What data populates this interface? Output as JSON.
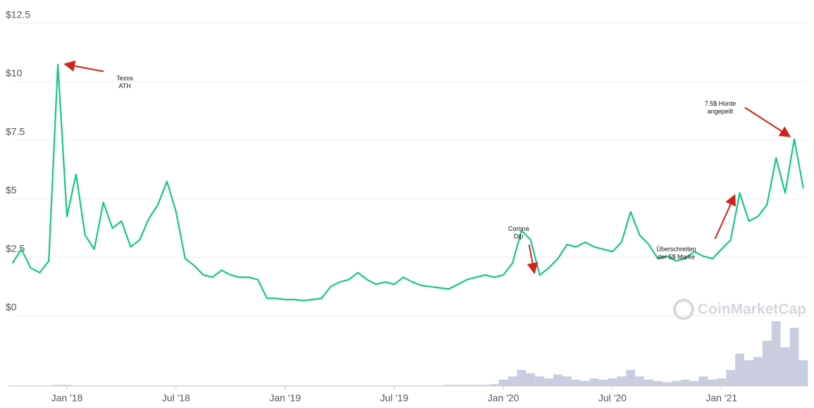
{
  "chart_data": {
    "type": "line",
    "watermark": "CoinMarketCap",
    "categories": [
      null,
      null,
      null,
      null,
      null,
      null,
      "Jan '18",
      null,
      null,
      null,
      null,
      null,
      null,
      null,
      null,
      null,
      null,
      null,
      "Jul '18",
      null,
      null,
      null,
      null,
      null,
      null,
      null,
      null,
      null,
      null,
      null,
      "Jan '19",
      null,
      null,
      null,
      null,
      null,
      null,
      null,
      null,
      null,
      null,
      null,
      "Jul '19",
      null,
      null,
      null,
      null,
      null,
      null,
      null,
      null,
      null,
      null,
      null,
      "Jan '20",
      null,
      null,
      null,
      null,
      null,
      null,
      null,
      null,
      null,
      null,
      null,
      "Jul '20",
      null,
      null,
      null,
      null,
      null,
      null,
      null,
      null,
      null,
      null,
      null,
      "Jan '21",
      null,
      null,
      null,
      null,
      null,
      null,
      null,
      null,
      null
    ],
    "series": [
      {
        "color": "#16c784",
        "values": [
          2.0,
          2.6,
          1.8,
          1.6,
          2.1,
          10.5,
          4.0,
          5.8,
          3.2,
          2.6,
          4.6,
          3.5,
          3.8,
          2.7,
          3.0,
          3.9,
          4.5,
          5.5,
          4.2,
          2.2,
          1.9,
          1.5,
          1.4,
          1.7,
          1.5,
          1.4,
          1.4,
          1.3,
          0.5,
          0.5,
          0.45,
          0.45,
          0.4,
          0.45,
          0.5,
          1.0,
          1.2,
          1.3,
          1.6,
          1.3,
          1.1,
          1.2,
          1.1,
          1.4,
          1.2,
          1.05,
          1.0,
          0.95,
          0.9,
          1.1,
          1.3,
          1.4,
          1.5,
          1.4,
          1.5,
          2.0,
          3.4,
          3.0,
          1.5,
          1.8,
          2.2,
          2.8,
          2.7,
          2.9,
          2.7,
          2.6,
          2.5,
          2.9,
          4.2,
          3.2,
          2.8,
          2.2,
          2.3,
          2.1,
          2.2,
          2.5,
          2.3,
          2.2,
          2.6,
          3.0,
          5.0,
          3.8,
          4.0,
          4.5,
          6.5,
          5.0,
          7.3,
          5.2
        ]
      },
      {
        "color": "#c9cde0",
        "axis": "y2",
        "values": [
          1,
          1,
          1,
          1,
          1,
          2,
          2,
          1,
          1,
          1,
          1,
          1,
          1,
          1,
          1,
          1,
          1,
          1,
          1,
          1,
          1,
          1,
          1,
          1,
          1,
          1,
          1,
          1,
          1,
          1,
          1,
          1,
          1,
          1,
          1,
          1,
          1,
          1,
          1,
          1,
          1,
          1,
          1,
          1,
          1,
          1,
          1,
          1,
          2,
          2,
          2,
          2,
          2,
          3,
          10,
          15,
          25,
          20,
          15,
          12,
          18,
          15,
          10,
          8,
          12,
          10,
          12,
          15,
          25,
          15,
          10,
          8,
          6,
          8,
          10,
          8,
          15,
          10,
          12,
          25,
          50,
          40,
          45,
          70,
          100,
          60,
          90,
          40
        ]
      }
    ],
    "ylim": [
      0,
      12.5
    ],
    "yticks": [
      {
        "value": 0,
        "label": "$0"
      },
      {
        "value": 2.5,
        "label": "$2.5"
      },
      {
        "value": 5,
        "label": "$5"
      },
      {
        "value": 7.5,
        "label": "$7.5"
      },
      {
        "value": 10,
        "label": "$10"
      },
      {
        "value": 12.5,
        "label": "$12.5"
      }
    ],
    "y2lim": [
      0,
      100
    ],
    "grid": true,
    "annotations": [
      {
        "index": 5,
        "text": [
          "Tezos",
          "ATH"
        ]
      },
      {
        "index": 58,
        "text": [
          "Corona",
          "Dip"
        ]
      },
      {
        "index": 80,
        "text": [
          "Überschreiten",
          "der 5$ Marke"
        ]
      },
      {
        "index": 86,
        "text": [
          "7.5$ Hürde",
          "angepeilt"
        ]
      }
    ]
  }
}
